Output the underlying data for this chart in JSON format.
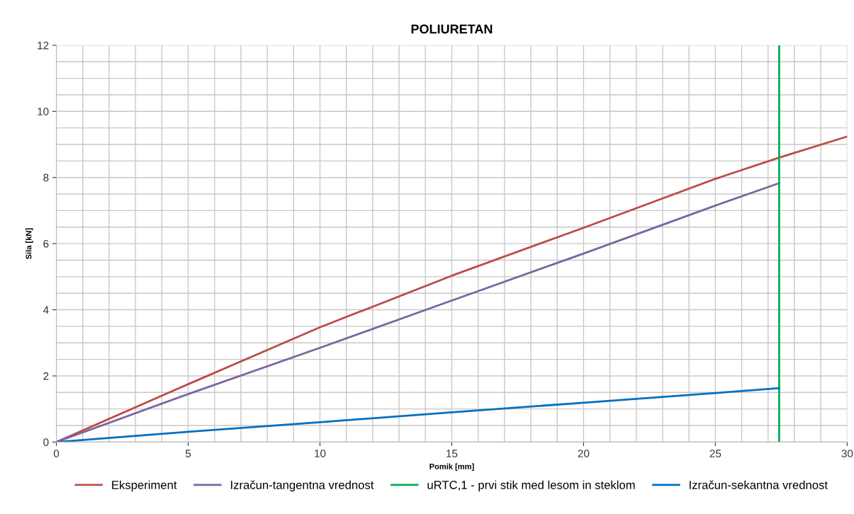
{
  "chart_data": {
    "type": "line",
    "title": "POLIURETAN",
    "xlabel": "Pomik [mm]",
    "ylabel": "Sila [kN]",
    "xlim": [
      0,
      30
    ],
    "ylim": [
      0,
      12
    ],
    "xticks": [
      0,
      {
        "value": 1,
        "label": null
      },
      {
        "value": 2,
        "label": null
      },
      {
        "value": 3,
        "label": null
      },
      {
        "value": 4,
        "label": null
      },
      5,
      {
        "value": 6,
        "label": null
      },
      {
        "value": 7,
        "label": null
      },
      {
        "value": 8,
        "label": null
      },
      {
        "value": 9,
        "label": null
      },
      10,
      {
        "value": 11,
        "label": null
      },
      {
        "value": 12,
        "label": null
      },
      {
        "value": 13,
        "label": null
      },
      {
        "value": 14,
        "label": null
      },
      15,
      {
        "value": 16,
        "label": null
      },
      {
        "value": 17,
        "label": null
      },
      {
        "value": 18,
        "label": null
      },
      {
        "value": 19,
        "label": null
      },
      20,
      {
        "value": 21,
        "label": null
      },
      {
        "value": 22,
        "label": null
      },
      {
        "value": 23,
        "label": null
      },
      {
        "value": 24,
        "label": null
      },
      25,
      {
        "value": 26,
        "label": null
      },
      {
        "value": 27,
        "label": null
      },
      {
        "value": 28,
        "label": null
      },
      {
        "value": 29,
        "label": null
      },
      30
    ],
    "yticks": [
      0,
      {
        "value": 0.5,
        "label": null
      },
      {
        "value": 1,
        "label": null
      },
      {
        "value": 1.5,
        "label": null
      },
      2,
      {
        "value": 2.5,
        "label": null
      },
      {
        "value": 3,
        "label": null
      },
      {
        "value": 3.5,
        "label": null
      },
      4,
      {
        "value": 4.5,
        "label": null
      },
      {
        "value": 5,
        "label": null
      },
      {
        "value": 5.5,
        "label": null
      },
      6,
      {
        "value": 6.5,
        "label": null
      },
      {
        "value": 7,
        "label": null
      },
      {
        "value": 7.5,
        "label": null
      },
      8,
      {
        "value": 8.5,
        "label": null
      },
      {
        "value": 9,
        "label": null
      },
      {
        "value": 9.5,
        "label": null
      },
      10,
      {
        "value": 10.5,
        "label": null
      },
      {
        "value": 11,
        "label": null
      },
      {
        "value": 11.5,
        "label": null
      },
      12
    ],
    "grid": true,
    "legend": "bottom",
    "marker": "none",
    "line_style": "solid",
    "series": [
      {
        "name": "Eksperiment",
        "color": "#be4b48",
        "x": [
          0,
          5,
          10,
          15,
          20,
          25,
          27.42,
          30
        ],
        "values": [
          0,
          1.75,
          3.47,
          5.03,
          6.48,
          7.96,
          8.6,
          9.24
        ]
      },
      {
        "name": "Izračun-tangentna vrednost",
        "color": "#7e64a0",
        "x": [
          0,
          5,
          10,
          15,
          20,
          25,
          27.42
        ],
        "values": [
          0,
          1.45,
          2.85,
          4.28,
          5.7,
          7.15,
          7.83
        ]
      },
      {
        "name": "uRTC,1 - prvi stik med lesom in steklom",
        "color": "#00b050",
        "x": [
          27.42,
          27.42
        ],
        "values": [
          0,
          12
        ]
      },
      {
        "name": "Izračun-sekantna vrednost",
        "color": "#0070c0",
        "x": [
          0,
          5,
          10,
          15,
          20,
          25,
          27.42
        ],
        "values": [
          0,
          0.31,
          0.6,
          0.9,
          1.19,
          1.48,
          1.63
        ]
      }
    ]
  }
}
